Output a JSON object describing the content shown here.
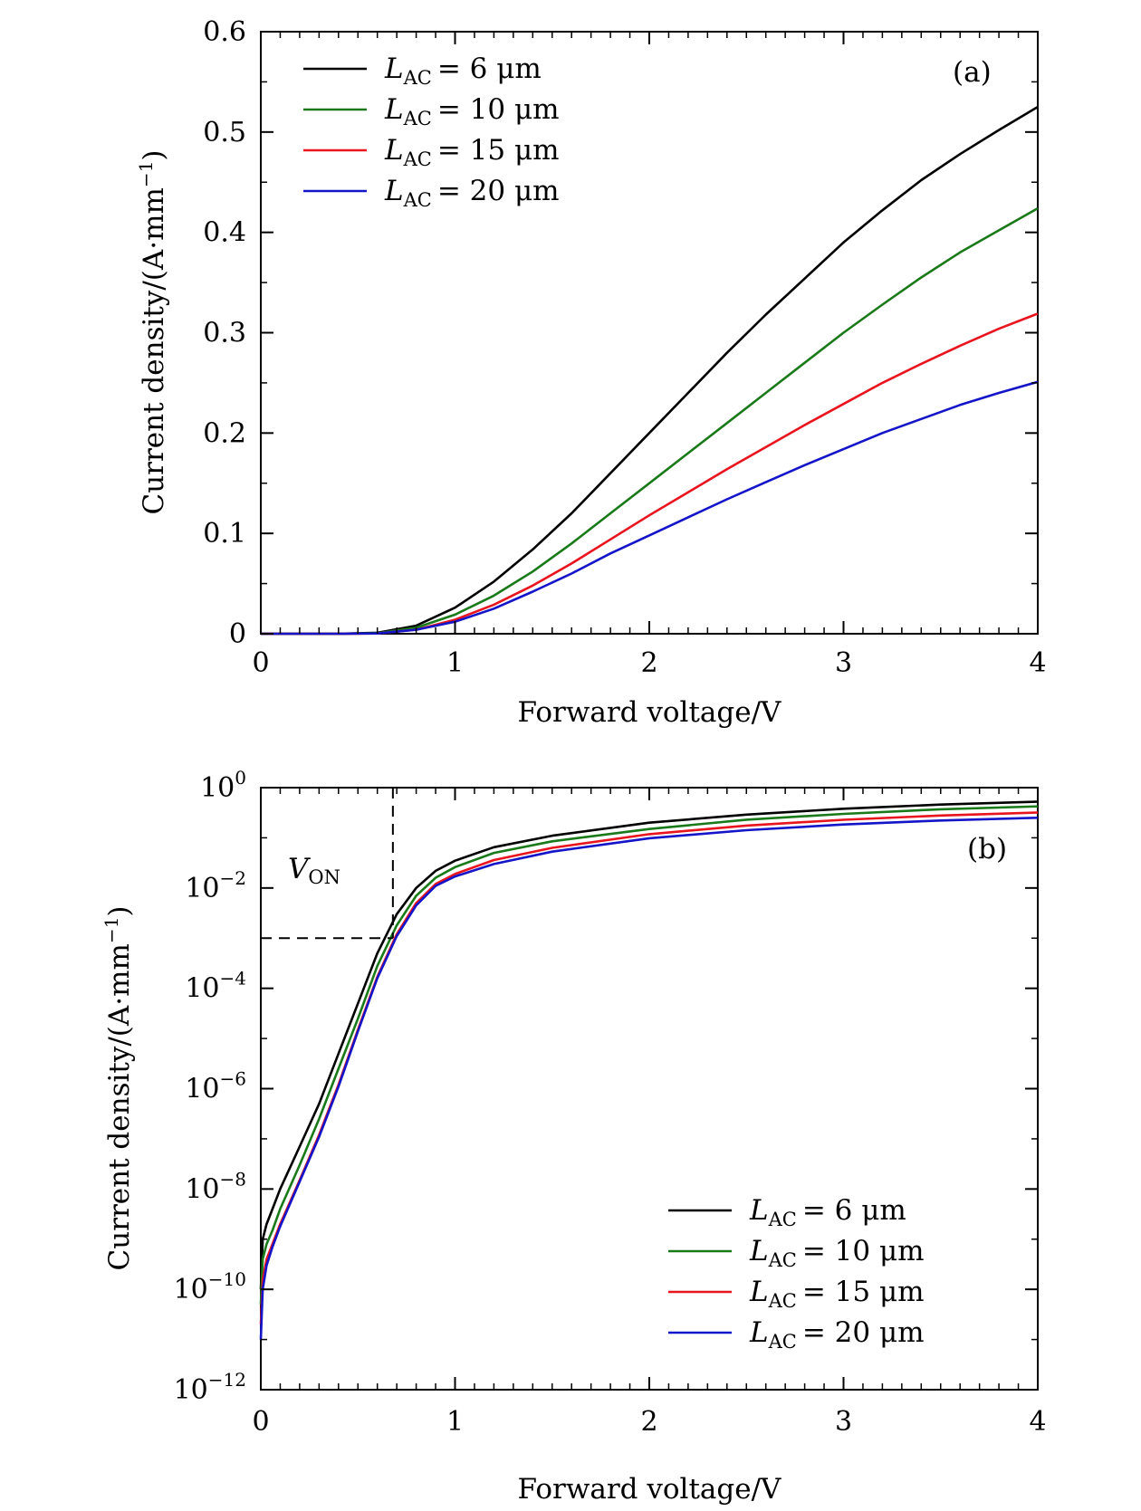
{
  "chart_data": [
    {
      "type": "line",
      "panel_label": "(a)",
      "xlabel": "Forward voltage/V",
      "ylabel": "Current density/(A·mm",
      "ylabel_sup": "−1",
      "ylabel_close": ")",
      "xlim": [
        0,
        4
      ],
      "ylim": [
        0,
        0.6
      ],
      "yscale": "linear",
      "xticks": [
        0,
        1,
        2,
        3,
        4
      ],
      "xtick_labels": [
        "0",
        "1",
        "2",
        "3",
        "4"
      ],
      "yticks": [
        0,
        0.1,
        0.2,
        0.3,
        0.4,
        0.5,
        0.6
      ],
      "ytick_labels": [
        "0",
        "0.1",
        "0.2",
        "0.3",
        "0.4",
        "0.5",
        "0.6"
      ],
      "legend_position": "top-left",
      "series": [
        {
          "name_symbol": "L",
          "name_sub": "AC",
          "name_value": "= 6 μm",
          "color": "#000000",
          "x": [
            0,
            0.4,
            0.6,
            0.8,
            1.0,
            1.2,
            1.4,
            1.6,
            1.8,
            2.0,
            2.2,
            2.4,
            2.6,
            2.8,
            3.0,
            3.2,
            3.4,
            3.6,
            3.8,
            4.0
          ],
          "y": [
            0,
            0,
            0.001,
            0.008,
            0.026,
            0.052,
            0.084,
            0.12,
            0.16,
            0.2,
            0.24,
            0.28,
            0.318,
            0.354,
            0.39,
            0.422,
            0.452,
            0.478,
            0.502,
            0.525
          ]
        },
        {
          "name_symbol": "L",
          "name_sub": "AC",
          "name_value": "= 10 μm",
          "color": "#1a7a1a",
          "x": [
            0,
            0.4,
            0.6,
            0.8,
            1.0,
            1.2,
            1.4,
            1.6,
            1.8,
            2.0,
            2.2,
            2.4,
            2.6,
            2.8,
            3.0,
            3.2,
            3.4,
            3.6,
            3.8,
            4.0
          ],
          "y": [
            0,
            0,
            0.0005,
            0.006,
            0.019,
            0.038,
            0.062,
            0.09,
            0.12,
            0.15,
            0.18,
            0.21,
            0.24,
            0.27,
            0.3,
            0.328,
            0.355,
            0.38,
            0.402,
            0.424
          ]
        },
        {
          "name_symbol": "L",
          "name_sub": "AC",
          "name_value": "= 15 μm",
          "color": "#e8141e",
          "x": [
            0,
            0.4,
            0.6,
            0.8,
            1.0,
            1.2,
            1.4,
            1.6,
            1.8,
            2.0,
            2.2,
            2.4,
            2.6,
            2.8,
            3.0,
            3.2,
            3.4,
            3.6,
            3.8,
            4.0
          ],
          "y": [
            0,
            0,
            0.0003,
            0.004,
            0.014,
            0.029,
            0.048,
            0.07,
            0.094,
            0.118,
            0.141,
            0.164,
            0.186,
            0.208,
            0.229,
            0.25,
            0.269,
            0.287,
            0.304,
            0.319
          ]
        },
        {
          "name_symbol": "L",
          "name_sub": "AC",
          "name_value": "= 20 μm",
          "color": "#1414c8",
          "x": [
            0,
            0.4,
            0.6,
            0.8,
            1.0,
            1.2,
            1.4,
            1.6,
            1.8,
            2.0,
            2.2,
            2.4,
            2.6,
            2.8,
            3.0,
            3.2,
            3.4,
            3.6,
            3.8,
            4.0
          ],
          "y": [
            0,
            0,
            0.0003,
            0.004,
            0.012,
            0.025,
            0.042,
            0.06,
            0.08,
            0.098,
            0.116,
            0.134,
            0.151,
            0.168,
            0.184,
            0.2,
            0.214,
            0.228,
            0.24,
            0.251
          ]
        }
      ]
    },
    {
      "type": "line",
      "panel_label": "(b)",
      "xlabel": "Forward voltage/V",
      "ylabel": "Current density/(A·mm",
      "ylabel_sup": "−1",
      "ylabel_close": ")",
      "xlim": [
        0,
        4
      ],
      "ylim_log10": [
        -12,
        0
      ],
      "yscale": "log",
      "xticks": [
        0,
        1,
        2,
        3,
        4
      ],
      "xtick_labels": [
        "0",
        "1",
        "2",
        "3",
        "4"
      ],
      "ytick_exponents": [
        0,
        -2,
        -4,
        -6,
        -8,
        -10,
        -12
      ],
      "ytick_exponent_labels": [
        "0",
        "−2",
        "−4",
        "−6",
        "−8",
        "−10",
        "−12"
      ],
      "ytick_base": "10",
      "legend_position": "bottom-right",
      "annotation": {
        "symbol": "V",
        "sub": "ON",
        "von_x": 0.68,
        "threshold_y": 0.001
      },
      "series": [
        {
          "name_symbol": "L",
          "name_sub": "AC",
          "name_value": "= 6 μm",
          "color": "#000000",
          "x": [
            0,
            0.01,
            0.03,
            0.06,
            0.1,
            0.2,
            0.3,
            0.4,
            0.5,
            0.6,
            0.7,
            0.8,
            0.9,
            1.0,
            1.2,
            1.5,
            2.0,
            2.5,
            3.0,
            3.5,
            4.0
          ],
          "y": [
            1e-10,
            1e-09,
            2e-09,
            4e-09,
            1e-08,
            7e-08,
            5e-07,
            5e-06,
            5e-05,
            0.0005,
            0.003,
            0.01,
            0.022,
            0.035,
            0.065,
            0.11,
            0.2,
            0.29,
            0.38,
            0.46,
            0.525
          ]
        },
        {
          "name_symbol": "L",
          "name_sub": "AC",
          "name_value": "= 10 μm",
          "color": "#1a7a1a",
          "x": [
            0,
            0.01,
            0.03,
            0.06,
            0.1,
            0.2,
            0.3,
            0.4,
            0.5,
            0.6,
            0.7,
            0.8,
            0.9,
            1.0,
            1.2,
            1.5,
            2.0,
            2.5,
            3.0,
            3.5,
            4.0
          ],
          "y": [
            5e-11,
            4e-10,
            8e-10,
            1.5e-09,
            4e-09,
            3e-08,
            2.5e-07,
            2.5e-06,
            2.5e-05,
            0.00028,
            0.0018,
            0.007,
            0.016,
            0.026,
            0.05,
            0.085,
            0.15,
            0.23,
            0.3,
            0.37,
            0.424
          ]
        },
        {
          "name_symbol": "L",
          "name_sub": "AC",
          "name_value": "= 15 μm",
          "color": "#e8141e",
          "x": [
            0,
            0.01,
            0.03,
            0.06,
            0.1,
            0.2,
            0.3,
            0.4,
            0.5,
            0.6,
            0.7,
            0.8,
            0.9,
            1.0,
            1.2,
            1.5,
            2.0,
            2.5,
            3.0,
            3.5,
            4.0
          ],
          "y": [
            2e-11,
            1.5e-10,
            4e-10,
            8e-10,
            2e-09,
            1.5e-08,
            1.2e-07,
            1.2e-06,
            1.5e-05,
            0.00017,
            0.0012,
            0.005,
            0.012,
            0.019,
            0.036,
            0.063,
            0.118,
            0.175,
            0.229,
            0.278,
            0.319
          ]
        },
        {
          "name_symbol": "L",
          "name_sub": "AC",
          "name_value": "= 20 μm",
          "color": "#1414c8",
          "x": [
            0,
            0.01,
            0.03,
            0.06,
            0.1,
            0.2,
            0.3,
            0.4,
            0.5,
            0.6,
            0.7,
            0.8,
            0.9,
            1.0,
            1.2,
            1.5,
            2.0,
            2.5,
            3.0,
            3.5,
            4.0
          ],
          "y": [
            1e-11,
            1e-10,
            3e-10,
            7e-10,
            1.8e-09,
            1.4e-08,
            1.1e-07,
            1.1e-06,
            1.4e-05,
            0.00016,
            0.0011,
            0.0045,
            0.011,
            0.017,
            0.03,
            0.053,
            0.098,
            0.142,
            0.184,
            0.221,
            0.251
          ]
        }
      ]
    }
  ]
}
